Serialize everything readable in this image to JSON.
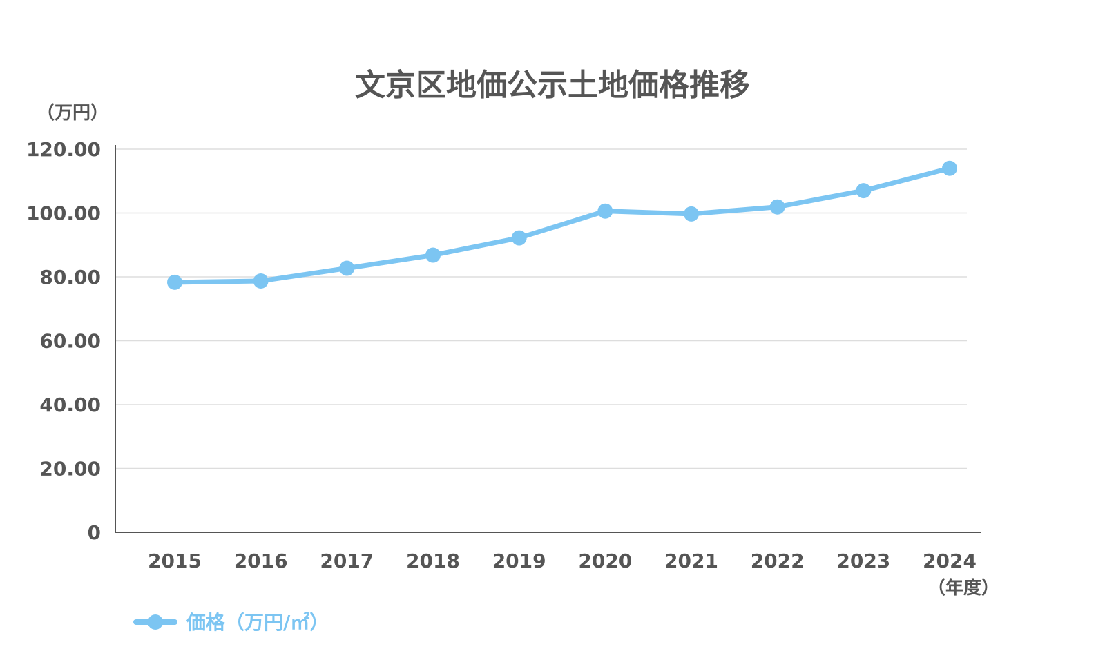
{
  "colors": {
    "series": "#7cc5f2",
    "text": "#555555",
    "grid": "#dddddd",
    "axis": "#555555"
  },
  "chart_data": {
    "type": "line",
    "title": "文京区地価公示土地価格推移",
    "ylabel": "（万円）",
    "xlabel": "（年度）",
    "ylim": [
      0,
      120
    ],
    "y_ticks": [
      "0",
      "20.00",
      "40.00",
      "60.00",
      "80.00",
      "100.00",
      "120.00"
    ],
    "categories": [
      "2015",
      "2016",
      "2017",
      "2018",
      "2019",
      "2020",
      "2021",
      "2022",
      "2023",
      "2024"
    ],
    "grid": true,
    "legend_position": "bottom-left",
    "series": [
      {
        "name": "価格（万円/㎡）",
        "values": [
          78.3,
          78.7,
          82.7,
          86.8,
          92.2,
          100.6,
          99.7,
          101.9,
          107.0,
          114.0
        ]
      }
    ]
  }
}
